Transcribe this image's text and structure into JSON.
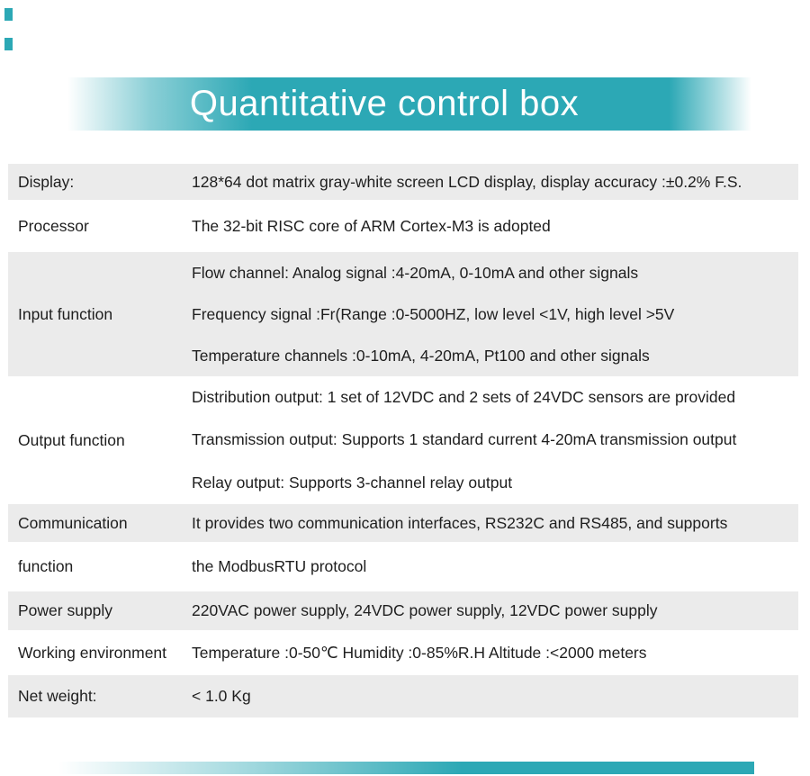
{
  "page": {
    "title": "Quantitative control box",
    "accent_color": "#2ca8b5",
    "row_shaded_color": "#ebebeb",
    "text_color": "#1e1e1e"
  },
  "spec_table": {
    "rows": [
      {
        "label": "Display:",
        "lines": [
          "128*64 dot matrix gray-white screen LCD display, display accuracy :±0.2% F.S."
        ]
      },
      {
        "label": "Processor",
        "lines": [
          "The 32-bit RISC core of ARM Cortex-M3 is adopted"
        ]
      },
      {
        "label": "Input function",
        "lines": [
          "Flow channel: Analog signal :4-20mA, 0-10mA and other signals",
          "Frequency signal :Fr(Range :0-5000HZ, low level <1V, high level >5V",
          "Temperature channels :0-10mA, 4-20mA, Pt100 and other signals"
        ]
      },
      {
        "label": "Output function",
        "lines": [
          "Distribution output: 1 set of 12VDC and 2 sets of 24VDC sensors are provided",
          "Transmission output: Supports 1 standard current 4-20mA transmission output",
          "Relay output: Supports 3-channel relay output"
        ]
      },
      {
        "label": "Communication",
        "lines": [
          "It provides two communication interfaces, RS232C and RS485, and supports"
        ]
      },
      {
        "label": "function",
        "lines": [
          "the ModbusRTU protocol"
        ]
      },
      {
        "label": "Power supply",
        "lines": [
          "220VAC power supply, 24VDC power supply, 12VDC power supply"
        ]
      },
      {
        "label": "Working environment",
        "lines": [
          "Temperature :0-50℃ Humidity :0-85%R.H Altitude :<2000 meters"
        ]
      },
      {
        "label": "Net weight:",
        "lines": [
          "< 1.0 Kg"
        ]
      }
    ]
  }
}
